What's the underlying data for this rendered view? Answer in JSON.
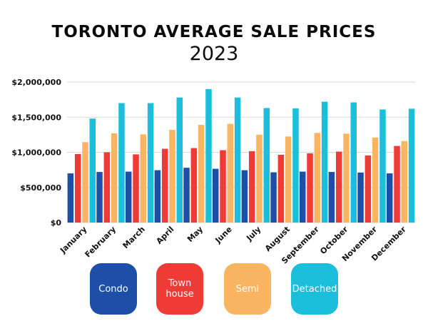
{
  "chart_data": {
    "type": "bar",
    "title": "TORONTO AVERAGE SALE PRICES",
    "subtitle": "2023",
    "xlabel": "",
    "ylabel": "",
    "ylim": [
      0,
      2000000
    ],
    "yticks": [
      0,
      500000,
      1000000,
      1500000,
      2000000
    ],
    "ytick_labels": [
      "$0",
      "$500,000",
      "$1,000,000",
      "$1,500,000",
      "$2,000,000"
    ],
    "grid": true,
    "legend_position": "bottom",
    "categories": [
      "January",
      "February",
      "March",
      "April",
      "May",
      "June",
      "July",
      "August",
      "September",
      "October",
      "November",
      "December"
    ],
    "series": [
      {
        "name": "Condo",
        "color": "#1e4fa8",
        "values": [
          700000,
          720000,
          725000,
          745000,
          780000,
          765000,
          745000,
          715000,
          725000,
          720000,
          712000,
          700000
        ]
      },
      {
        "name": "Town house",
        "color": "#ef3b36",
        "values": [
          975000,
          1000000,
          970000,
          1050000,
          1060000,
          1030000,
          1015000,
          965000,
          985000,
          1010000,
          955000,
          1090000
        ]
      },
      {
        "name": "Semi",
        "color": "#fab563",
        "values": [
          1145000,
          1270000,
          1255000,
          1320000,
          1390000,
          1405000,
          1250000,
          1225000,
          1275000,
          1265000,
          1210000,
          1160000
        ]
      },
      {
        "name": "Detached",
        "color": "#1cbfdb",
        "values": [
          1480000,
          1700000,
          1700000,
          1780000,
          1900000,
          1780000,
          1630000,
          1625000,
          1720000,
          1710000,
          1610000,
          1620000
        ]
      }
    ]
  },
  "legend": {
    "items": [
      {
        "label": "Condo",
        "color": "#1e4fa8"
      },
      {
        "label": "Town house",
        "line1": "Town",
        "line2": "house",
        "color": "#ef3b36"
      },
      {
        "label": "Semi",
        "color": "#fab563"
      },
      {
        "label": "Detached",
        "color": "#1cbfdb"
      }
    ]
  }
}
